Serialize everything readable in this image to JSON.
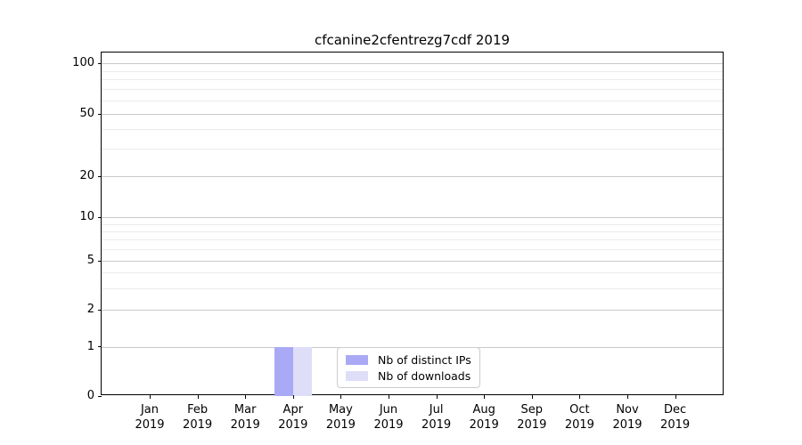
{
  "figure": {
    "background": "#ffffff",
    "text_color": "#000000"
  },
  "chart_data": {
    "type": "bar",
    "title": "cfcanine2cfentrezg7cdf 2019",
    "categories": [
      "Jan 2019",
      "Feb 2019",
      "Mar 2019",
      "Apr 2019",
      "May 2019",
      "Jun 2019",
      "Jul 2019",
      "Aug 2019",
      "Sep 2019",
      "Oct 2019",
      "Nov 2019",
      "Dec 2019"
    ],
    "series": [
      {
        "name": "Nb of distinct IPs",
        "color": "#a9a9f5",
        "values": [
          0,
          0,
          0,
          1,
          0,
          0,
          0,
          0,
          0,
          0,
          0,
          0
        ]
      },
      {
        "name": "Nb of downloads",
        "color": "#dedef8",
        "values": [
          0,
          0,
          0,
          1,
          0,
          0,
          0,
          0,
          0,
          0,
          0,
          0
        ]
      }
    ],
    "xlabel": "",
    "ylabel": "",
    "yscale": "symlog",
    "yticks": [
      0,
      1,
      2,
      5,
      10,
      20,
      50,
      100
    ],
    "ylim": [
      0,
      115
    ],
    "grid": true,
    "legend": {
      "position": "lower-center-inside",
      "entries": [
        "Nb of distinct IPs",
        "Nb of downloads"
      ]
    },
    "colors": {
      "major_grid": "#c9c9c9",
      "minor_grid": "#ebebeb",
      "spine": "#000000",
      "legend_border": "#cccccc"
    }
  }
}
